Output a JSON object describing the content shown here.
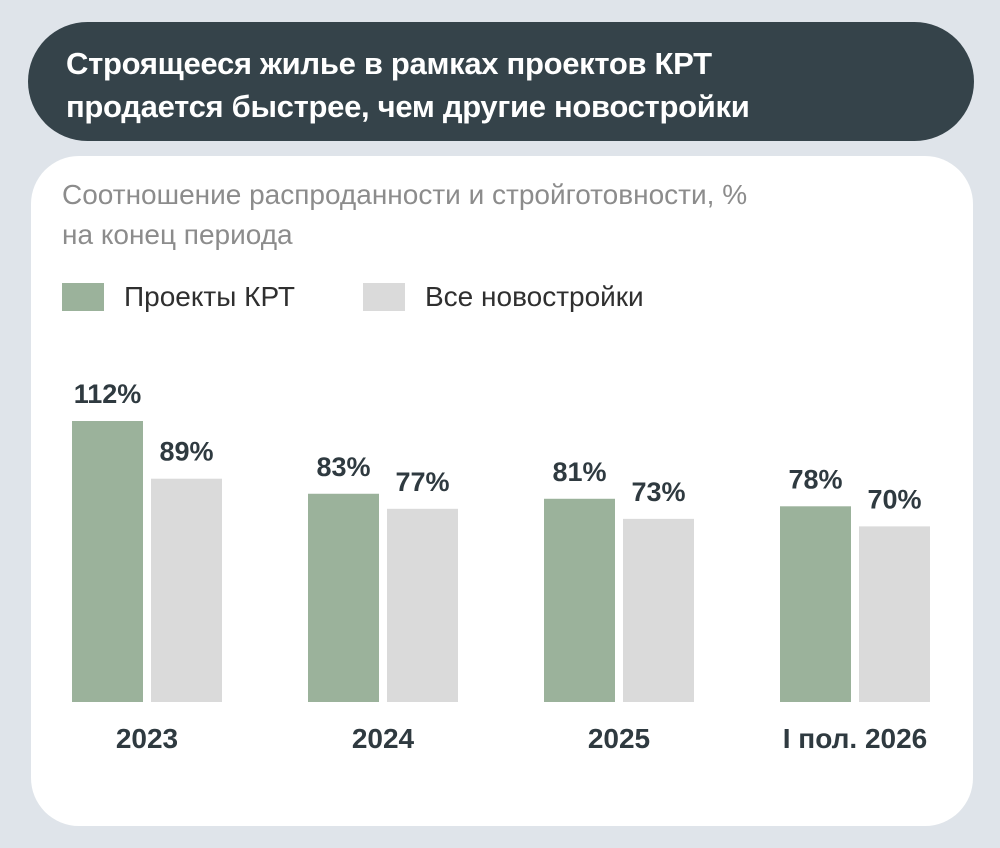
{
  "header": {
    "title_line1": "Строящееся жилье в рамках проектов КРТ",
    "title_line2": "продается быстрее, чем другие новостройки"
  },
  "chart_data": {
    "type": "bar",
    "title": "Соотношение распроданности и стройготовности, %",
    "subtitle": "на конец периода",
    "categories": [
      "2023",
      "2024",
      "2025",
      "I пол. 2026"
    ],
    "series": [
      {
        "name": "Проекты КРТ",
        "values": [
          112,
          83,
          81,
          78
        ],
        "labels": [
          "112%",
          "83%",
          "81%",
          "78%"
        ],
        "color": "#9bb29b"
      },
      {
        "name": "Все новостройки",
        "values": [
          89,
          77,
          73,
          70
        ],
        "labels": [
          "89%",
          "77%",
          "73%",
          "70%"
        ],
        "color": "#dadada"
      }
    ],
    "ylim": [
      0,
      112
    ],
    "grid": false,
    "legend": "top-left"
  }
}
